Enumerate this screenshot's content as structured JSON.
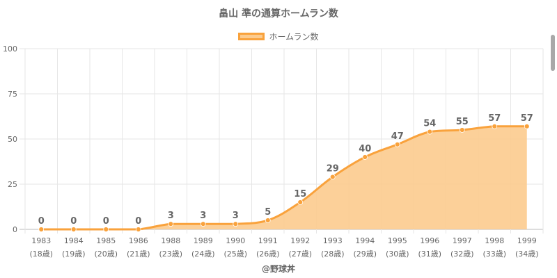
{
  "chart_data": {
    "type": "area",
    "title": "畠山 準の通算ホームラン数",
    "legend": {
      "position": "top",
      "entries": [
        "ホームラン数"
      ]
    },
    "categories": [
      "1983",
      "1984",
      "1985",
      "1986",
      "1988",
      "1989",
      "1990",
      "1991",
      "1992",
      "1993",
      "1994",
      "1995",
      "1996",
      "1997",
      "1998",
      "1999"
    ],
    "ages": [
      "(18歳)",
      "(19歳)",
      "(20歳)",
      "(21歳)",
      "(23歳)",
      "(24歳)",
      "(25歳)",
      "(26歳)",
      "(27歳)",
      "(28歳)",
      "(29歳)",
      "(30歳)",
      "(31歳)",
      "(32歳)",
      "(33歳)",
      "(34歳)"
    ],
    "series": [
      {
        "name": "ホームラン数",
        "values": [
          0,
          0,
          0,
          0,
          3,
          3,
          3,
          5,
          15,
          29,
          40,
          47,
          54,
          55,
          57,
          57
        ]
      }
    ],
    "ylim": [
      0,
      100
    ],
    "yticks": [
      0,
      25,
      50,
      75,
      100
    ],
    "grid": true,
    "colors": {
      "line": "#f9a23c",
      "fill": "#fccb8e",
      "grid": "#e6e6e6",
      "text": "#666666"
    }
  },
  "watermark": "@野球丼"
}
